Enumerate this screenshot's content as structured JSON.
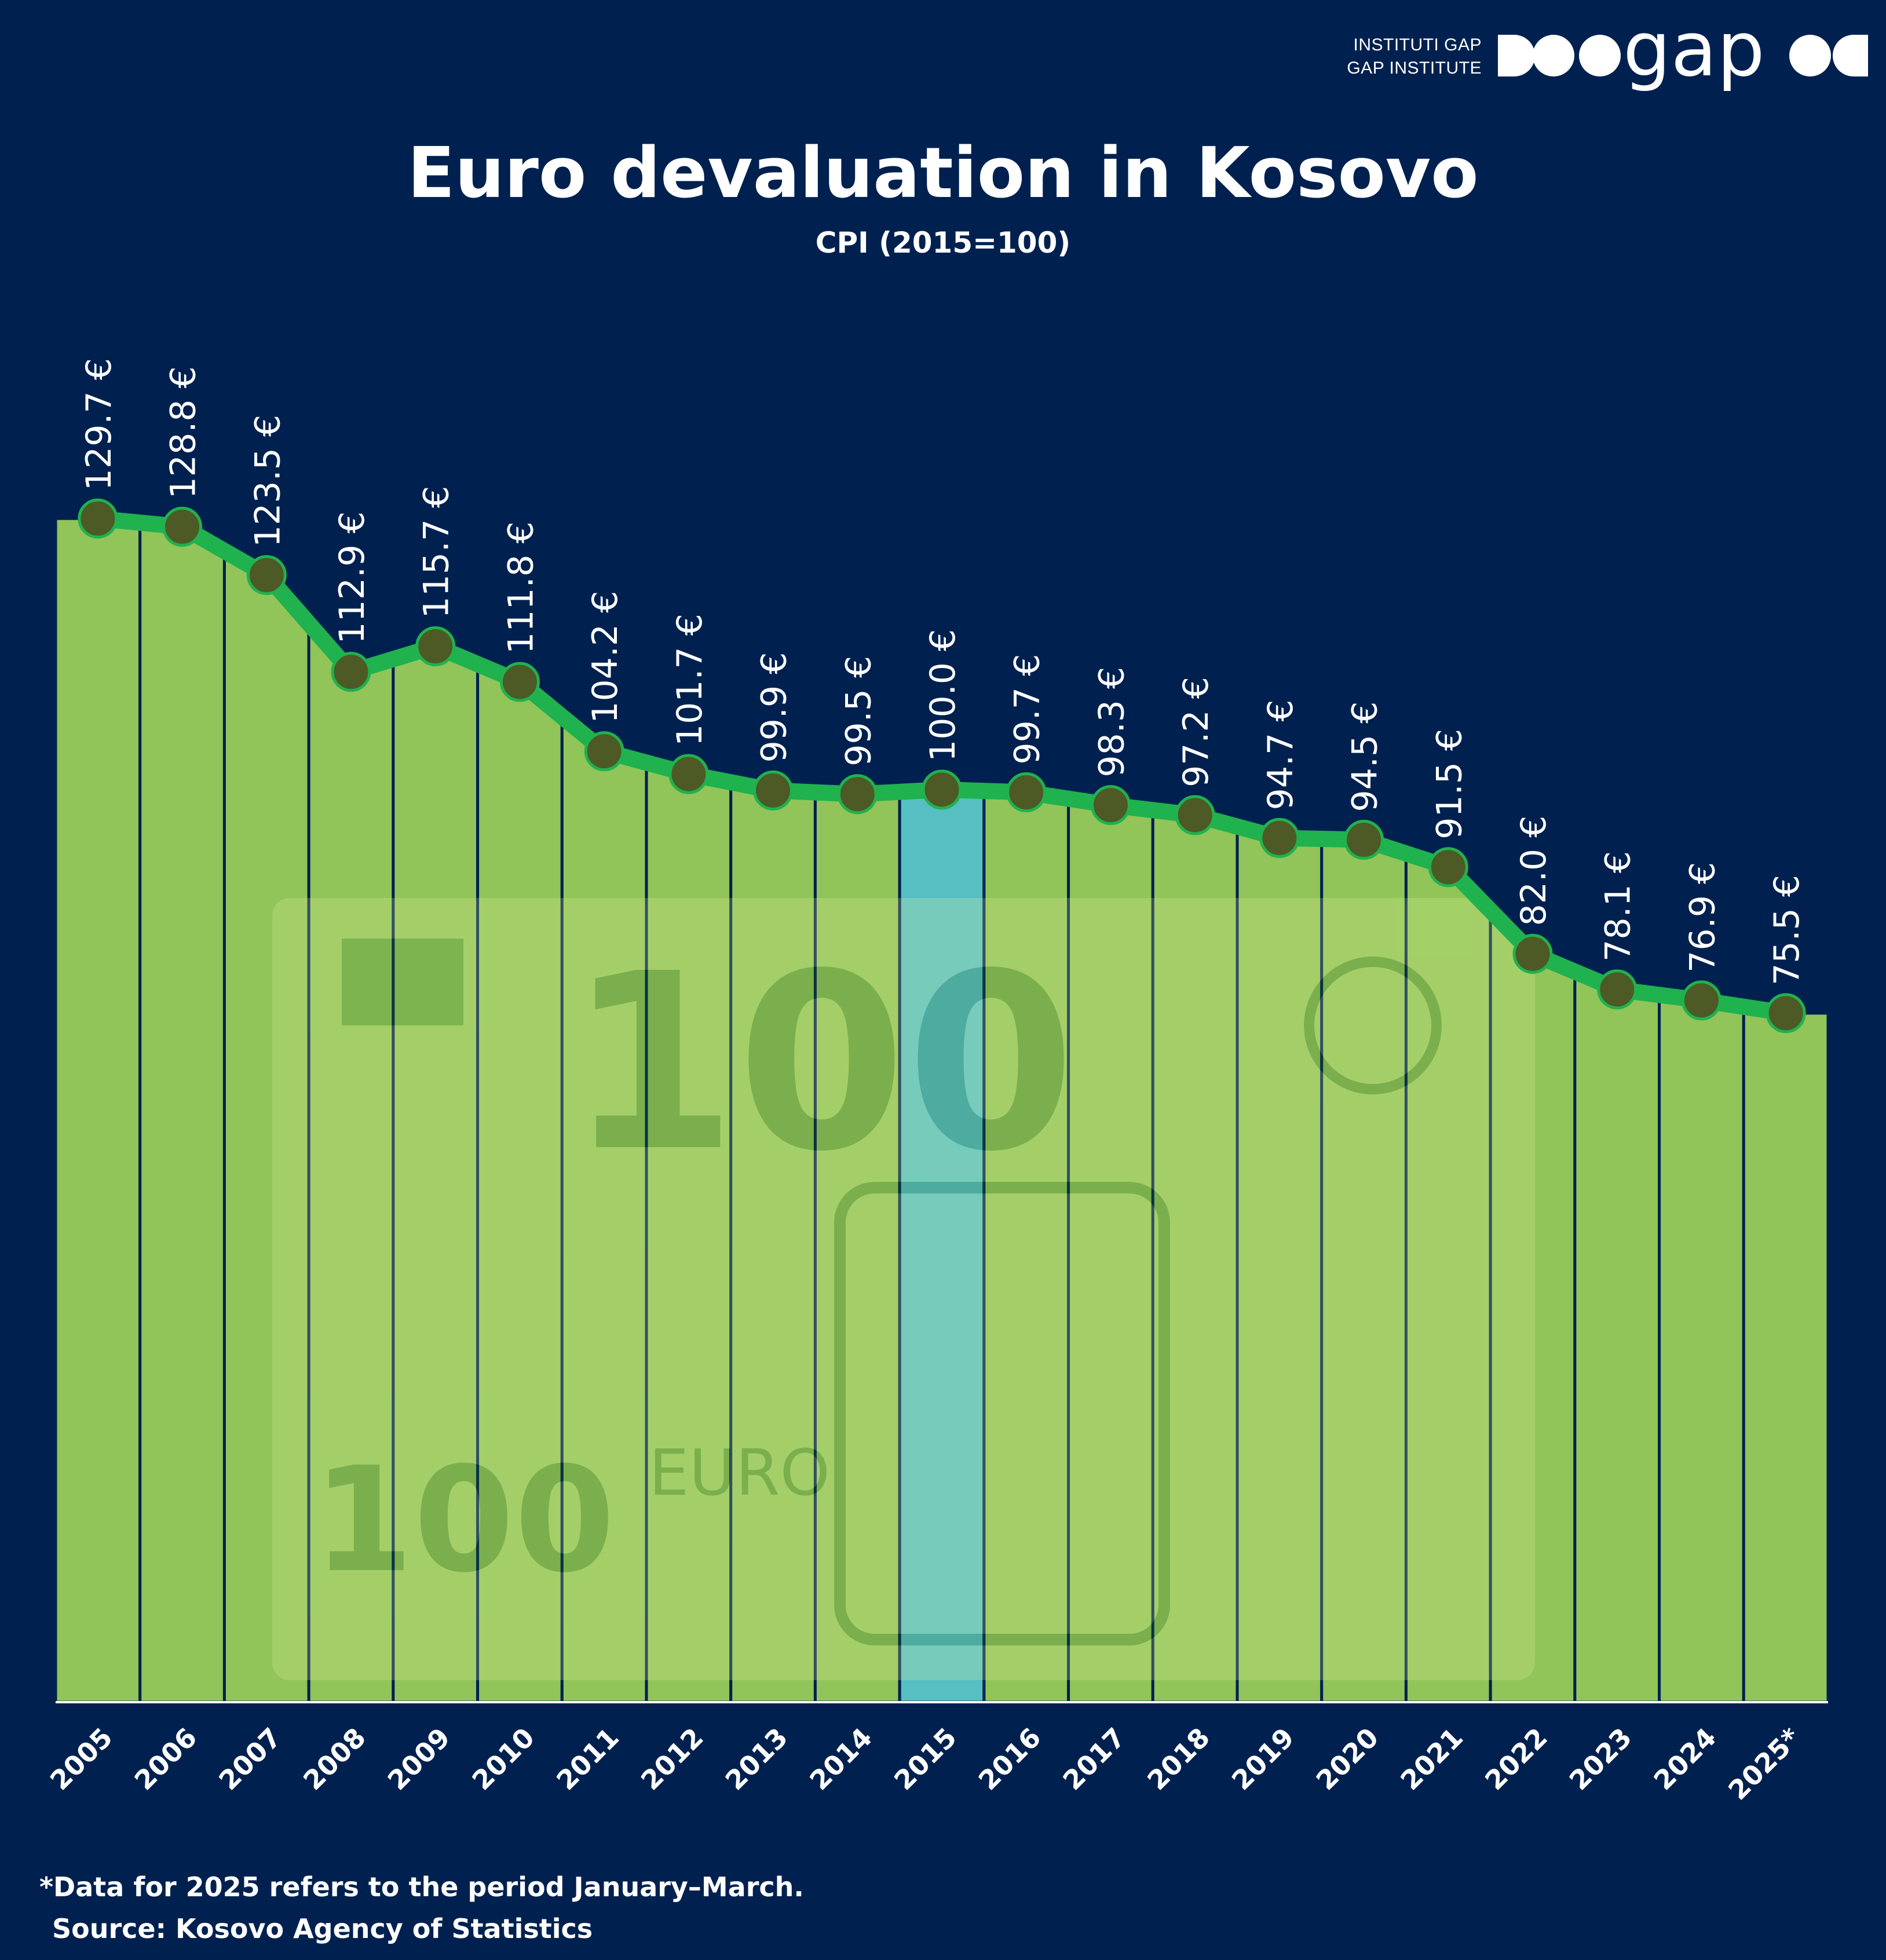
{
  "header": {
    "org_name_line1": "INSTITUTI GAP",
    "org_name_line2": "GAP INSTITUTE",
    "logo_word": "gap"
  },
  "title": "Euro devaluation in Kosovo",
  "subtitle": "CPI (2015=100)",
  "footnote": "*Data for 2025 refers to the period January–March.",
  "source": "Source: Kosovo Agency of Statistics",
  "colors": {
    "background": "#00214f",
    "area_fill": "#96c95a",
    "line": "#1fb24e",
    "marker": "#4d5a25",
    "highlight": "#5bc8c8",
    "divider": "#00214f"
  },
  "chart_data": {
    "type": "area",
    "categories": [
      "2005",
      "2006",
      "2007",
      "2008",
      "2009",
      "2010",
      "2011",
      "2012",
      "2013",
      "2014",
      "2015",
      "2016",
      "2017",
      "2018",
      "2019",
      "2020",
      "2021",
      "2022",
      "2023",
      "2024",
      "2025*"
    ],
    "values": [
      129.7,
      128.8,
      123.5,
      112.9,
      115.7,
      111.8,
      104.2,
      101.7,
      99.9,
      99.5,
      100.0,
      99.7,
      98.3,
      97.2,
      94.7,
      94.5,
      91.5,
      82.0,
      78.1,
      76.9,
      75.5
    ],
    "labels": [
      "129.7 €",
      "128.8 €",
      "123.5 €",
      "112.9 €",
      "115.7 €",
      "111.8 €",
      "104.2 €",
      "101.7 €",
      "99.9 €",
      "99.5 €",
      "100.0 €",
      "99.7 €",
      "98.3 €",
      "97.2 €",
      "94.7 €",
      "94.5 €",
      "91.5 €",
      "82.0 €",
      "78.1 €",
      "76.9 €",
      "75.5 €"
    ],
    "highlight_category": "2015",
    "title": "Euro devaluation in Kosovo",
    "subtitle": "CPI (2015=100)",
    "xlabel": "",
    "ylabel": "",
    "ylim": [
      0,
      130
    ],
    "grid": false,
    "legend": "none"
  }
}
